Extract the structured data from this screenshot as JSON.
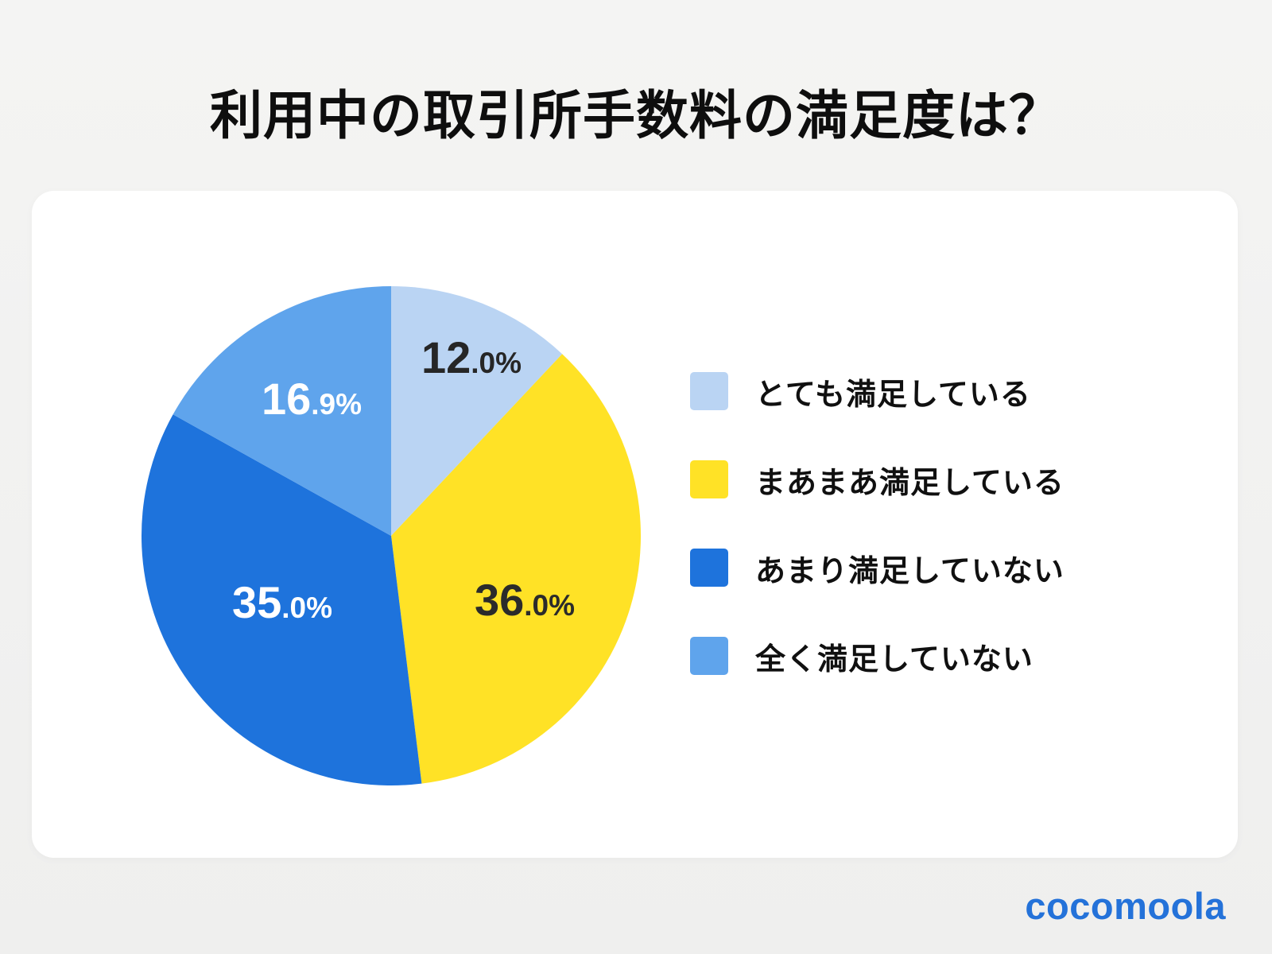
{
  "page": {
    "title": "利用中の取引所手数料の満足度は？",
    "background_color": "#EFEFEE",
    "card_color": "#FFFFFF"
  },
  "brand": {
    "logo_text": "cocomoola",
    "logo_color": "#2472D9"
  },
  "chart_data": {
    "type": "pie",
    "title": "利用中の取引所手数料の満足度は？",
    "start_angle_deg": 0,
    "direction": "clockwise",
    "legend_position": "right",
    "categories": [
      "とても満足している",
      "まあまあ満足している",
      "あまり満足していない",
      "全く満足していない"
    ],
    "values": [
      12.0,
      36.0,
      35.0,
      16.9
    ],
    "slices": [
      {
        "label": "とても満足している",
        "value": 12.0,
        "display": "12.0%",
        "display_big": "12",
        "display_small": ".0%",
        "color": "#BAD4F3",
        "text_color": "#262626"
      },
      {
        "label": "まあまあ満足している",
        "value": 36.0,
        "display": "36.0%",
        "display_big": "36",
        "display_small": ".0%",
        "color": "#FFE226",
        "text_color": "#2B2B2B"
      },
      {
        "label": "あまり満足していない",
        "value": 35.0,
        "display": "35.0%",
        "display_big": "35",
        "display_small": ".0%",
        "color": "#1E73DC",
        "text_color": "#FFFFFF"
      },
      {
        "label": "全く満足していない",
        "value": 16.9,
        "display": "16.9%",
        "display_big": "16",
        "display_small": ".9%",
        "color": "#5FA4EC",
        "text_color": "#FFFFFF"
      }
    ]
  }
}
